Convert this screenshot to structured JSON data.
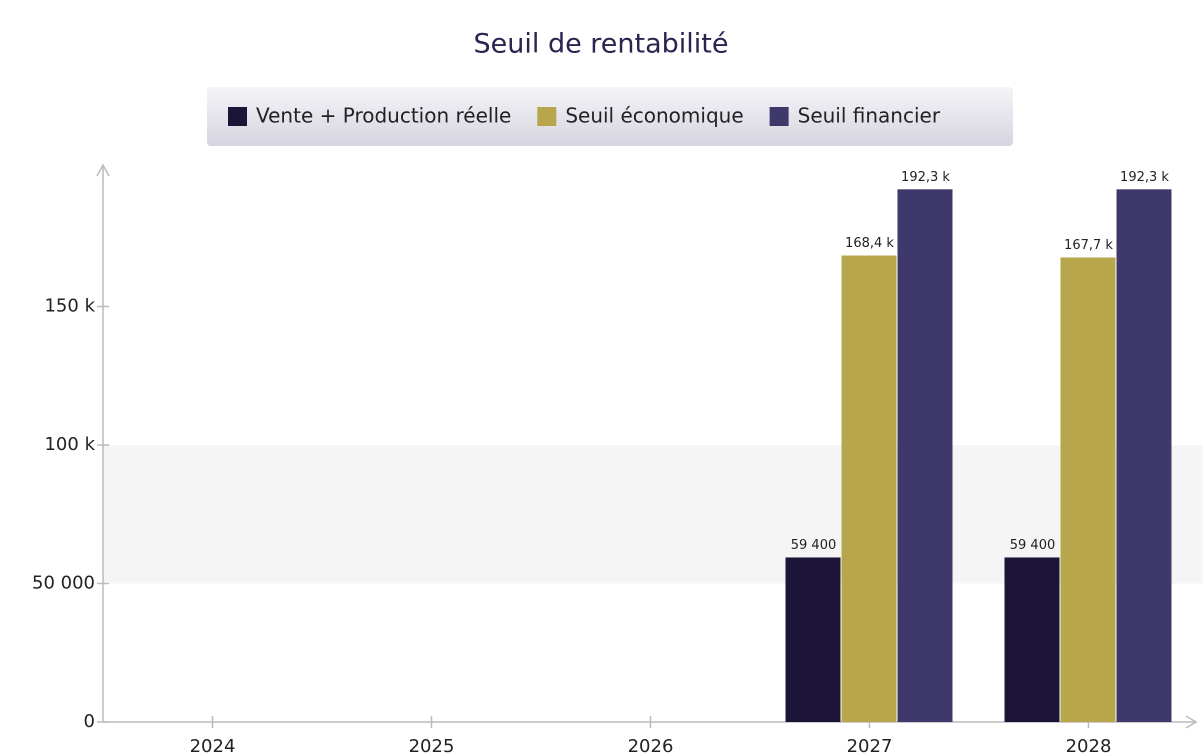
{
  "chart_data": {
    "type": "bar",
    "title": "Seuil de rentabilité",
    "categories": [
      "2024",
      "2025",
      "2026",
      "2027",
      "2028"
    ],
    "series": [
      {
        "name": "Vente + Production réelle",
        "color": "#1c1538",
        "values": [
          null,
          null,
          null,
          59400,
          59400
        ],
        "value_labels": [
          null,
          null,
          null,
          "59 400",
          "59 400"
        ]
      },
      {
        "name": "Seuil économique",
        "color": "#b8a64c",
        "values": [
          null,
          null,
          null,
          168400,
          167700
        ],
        "value_labels": [
          null,
          null,
          null,
          "168,4 k",
          "167,7 k"
        ]
      },
      {
        "name": "Seuil financier",
        "color": "#3e386b",
        "values": [
          null,
          null,
          null,
          192300,
          192300
        ],
        "value_labels": [
          null,
          null,
          null,
          "192,3 k",
          "192,3 k"
        ]
      }
    ],
    "ylim": [
      0,
      200000
    ],
    "yticks": [
      0,
      {
        "value": 50000,
        "label": "50 000"
      },
      {
        "value": 100000,
        "label": "100 k"
      },
      {
        "value": 150000,
        "label": "150 k"
      }
    ],
    "grid": true
  }
}
